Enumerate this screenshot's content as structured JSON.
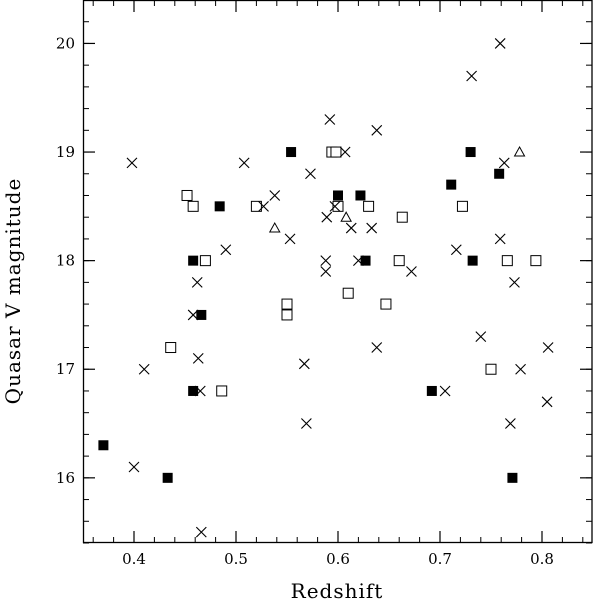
{
  "chart_data": {
    "type": "scatter",
    "xlabel": "Redshift",
    "ylabel": "Quasar V magnitude",
    "xlim": [
      0.35,
      0.85
    ],
    "ylim": [
      15.4,
      20.4
    ],
    "x_ticks": [
      0.4,
      0.5,
      0.6,
      0.7,
      0.8
    ],
    "x_tick_labels": [
      "0.4",
      "0.5",
      "0.6",
      "0.7",
      "0.8"
    ],
    "y_ticks": [
      16,
      17,
      18,
      19,
      20
    ],
    "y_tick_labels": [
      "16",
      "17",
      "18",
      "19",
      "20"
    ],
    "grid": false,
    "legend": "none",
    "series": [
      {
        "marker": "filled-square",
        "points": [
          [
            0.37,
            16.3
          ],
          [
            0.433,
            16.0
          ],
          [
            0.458,
            18.0
          ],
          [
            0.458,
            16.8
          ],
          [
            0.466,
            17.5
          ],
          [
            0.484,
            18.5
          ],
          [
            0.554,
            19.0
          ],
          [
            0.6,
            18.6
          ],
          [
            0.622,
            18.6
          ],
          [
            0.627,
            18.0
          ],
          [
            0.692,
            16.8
          ],
          [
            0.711,
            18.7
          ],
          [
            0.73,
            19.0
          ],
          [
            0.732,
            18.0
          ],
          [
            0.758,
            18.8
          ],
          [
            0.771,
            16.0
          ]
        ]
      },
      {
        "marker": "open-square",
        "points": [
          [
            0.436,
            17.2
          ],
          [
            0.452,
            18.6
          ],
          [
            0.458,
            18.5
          ],
          [
            0.47,
            18.0
          ],
          [
            0.486,
            16.8
          ],
          [
            0.52,
            18.5
          ],
          [
            0.55,
            17.6
          ],
          [
            0.55,
            17.5
          ],
          [
            0.594,
            19.0
          ],
          [
            0.598,
            19.0
          ],
          [
            0.6,
            18.5
          ],
          [
            0.61,
            17.7
          ],
          [
            0.63,
            18.5
          ],
          [
            0.647,
            17.6
          ],
          [
            0.66,
            18.0
          ],
          [
            0.663,
            18.4
          ],
          [
            0.722,
            18.5
          ],
          [
            0.75,
            17.0
          ],
          [
            0.766,
            18.0
          ],
          [
            0.794,
            18.0
          ]
        ]
      },
      {
        "marker": "cross",
        "points": [
          [
            0.398,
            18.9
          ],
          [
            0.4,
            16.1
          ],
          [
            0.41,
            17.0
          ],
          [
            0.458,
            17.5
          ],
          [
            0.462,
            17.8
          ],
          [
            0.463,
            17.1
          ],
          [
            0.465,
            16.8
          ],
          [
            0.466,
            15.5
          ],
          [
            0.49,
            18.1
          ],
          [
            0.508,
            18.9
          ],
          [
            0.527,
            18.5
          ],
          [
            0.538,
            18.6
          ],
          [
            0.553,
            18.2
          ],
          [
            0.567,
            17.05
          ],
          [
            0.569,
            16.5
          ],
          [
            0.573,
            18.8
          ],
          [
            0.588,
            18.0
          ],
          [
            0.588,
            17.9
          ],
          [
            0.589,
            18.4
          ],
          [
            0.592,
            19.3
          ],
          [
            0.597,
            18.5
          ],
          [
            0.607,
            19.0
          ],
          [
            0.613,
            18.3
          ],
          [
            0.62,
            18.0
          ],
          [
            0.633,
            18.3
          ],
          [
            0.638,
            19.2
          ],
          [
            0.638,
            17.2
          ],
          [
            0.672,
            17.9
          ],
          [
            0.705,
            16.8
          ],
          [
            0.716,
            18.1
          ],
          [
            0.731,
            19.7
          ],
          [
            0.74,
            17.3
          ],
          [
            0.759,
            18.2
          ],
          [
            0.759,
            20.0
          ],
          [
            0.763,
            18.9
          ],
          [
            0.769,
            16.5
          ],
          [
            0.773,
            17.8
          ],
          [
            0.779,
            17.0
          ],
          [
            0.805,
            16.7
          ],
          [
            0.806,
            17.2
          ]
        ]
      },
      {
        "marker": "open-triangle",
        "points": [
          [
            0.538,
            18.3
          ],
          [
            0.608,
            18.4
          ],
          [
            0.778,
            19.0
          ]
        ]
      }
    ]
  }
}
